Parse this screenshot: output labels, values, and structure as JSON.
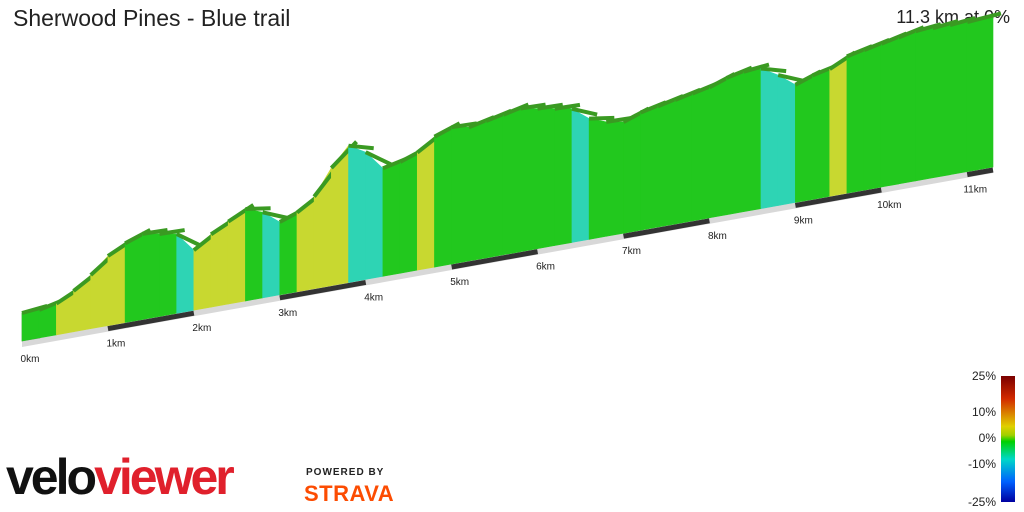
{
  "header": {
    "title": "Sherwood Pines - Blue trail",
    "summary": "11.3 km at 0%"
  },
  "chart_data": {
    "type": "area",
    "title": "Sherwood Pines - Blue trail",
    "subtitle": "11.3 km at 0%",
    "xlabel": "",
    "ylabel": "",
    "x_unit": "km",
    "x_ticks": [
      "0km",
      "1km",
      "2km",
      "3km",
      "4km",
      "5km",
      "6km",
      "7km",
      "8km",
      "9km",
      "10km",
      "11km"
    ],
    "xlim": [
      0,
      11.3
    ],
    "distance": [
      0.0,
      0.2,
      0.4,
      0.6,
      0.8,
      1.0,
      1.2,
      1.4,
      1.6,
      1.8,
      2.0,
      2.2,
      2.4,
      2.6,
      2.8,
      3.0,
      3.2,
      3.4,
      3.6,
      3.8,
      4.0,
      4.2,
      4.4,
      4.6,
      4.8,
      5.0,
      5.2,
      5.4,
      5.6,
      5.8,
      6.0,
      6.2,
      6.4,
      6.6,
      6.8,
      7.0,
      7.2,
      7.4,
      7.6,
      7.8,
      8.0,
      8.2,
      8.4,
      8.6,
      8.8,
      9.0,
      9.2,
      9.4,
      9.6,
      9.8,
      10.0,
      10.2,
      10.4,
      10.6,
      10.8,
      11.0,
      11.3
    ],
    "elevation": [
      0,
      0,
      1,
      4,
      8,
      13,
      16,
      18,
      17,
      16,
      10,
      14,
      17,
      20,
      18,
      14,
      16,
      20,
      28,
      34,
      31,
      25,
      26,
      28,
      32,
      34,
      33,
      34,
      35,
      36,
      35,
      34,
      33,
      29,
      27,
      26,
      28,
      29,
      30,
      31,
      32,
      34,
      35,
      35,
      32,
      28,
      30,
      31,
      34,
      35,
      36,
      37,
      38,
      38,
      38,
      38,
      38
    ],
    "colorbar": {
      "ticks": [
        "25%",
        "10%",
        "0%",
        "-10%",
        "-25%"
      ],
      "stops": [
        "#7a0000",
        "#d22a00",
        "#e0d000",
        "#a0d000",
        "#00d000",
        "#00d8c8",
        "#0060ff",
        "#0000a0"
      ]
    },
    "grid": false,
    "legend": "colorbar bottom-right"
  },
  "branding": {
    "velo": "velo",
    "viewer": "viewer",
    "powered": "POWERED BY",
    "strava": "STRAVA"
  }
}
